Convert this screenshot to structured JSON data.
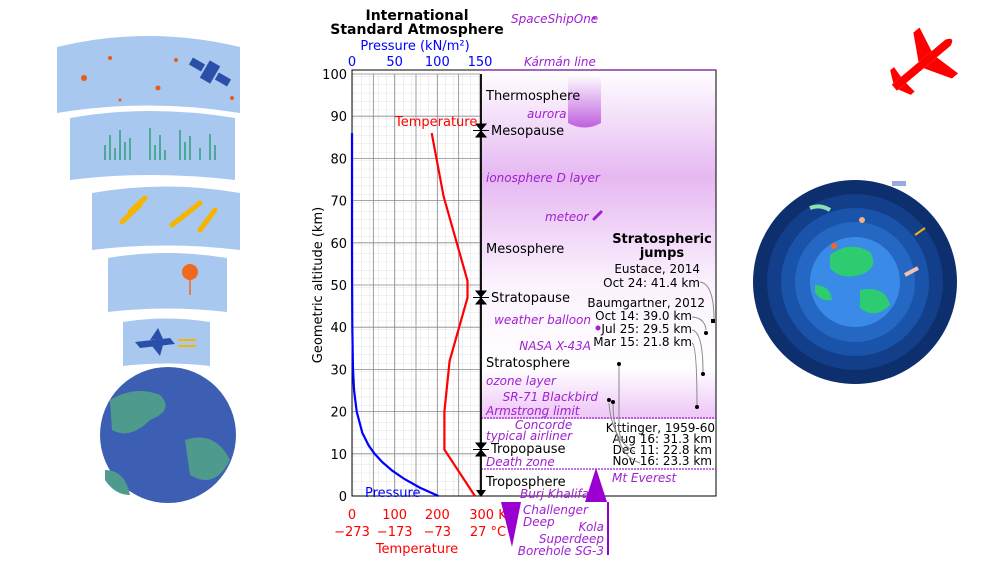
{
  "title_line1": "International",
  "title_line2": "Standard Atmosphere",
  "pressure_axis_label": "Pressure (kN/m²)",
  "pressure_ticks": [
    "0",
    "50",
    "100",
    "150"
  ],
  "altitude_axis_label": "Geometric altitude (km)",
  "altitude_ticks": [
    "0",
    "10",
    "20",
    "30",
    "40",
    "50",
    "60",
    "70",
    "80",
    "90",
    "100"
  ],
  "kelvin_ticks": [
    "0",
    "100",
    "200",
    "300 K"
  ],
  "celsius_ticks": [
    "−273",
    "−173",
    "−73",
    "27 °C"
  ],
  "temperature_axis_label": "Temperature",
  "temperature_curve_label": "Temperature",
  "pressure_curve_label": "Pressure",
  "layers": {
    "thermosphere": "Thermosphere",
    "mesopause": "Mesopause",
    "mesosphere": "Mesosphere",
    "stratopause": "Stratopause",
    "stratosphere": "Stratosphere",
    "tropopause": "Tropopause",
    "troposphere": "Troposphere"
  },
  "annotations": {
    "spaceshipone": "SpaceShipOne",
    "karman": "Kármán line",
    "aurora": "aurora",
    "ionosphere": "ionosphere D layer",
    "meteor": "meteor",
    "weather_balloon": "weather balloon",
    "x43a": "NASA X-43A",
    "ozone": "ozone layer",
    "sr71": "SR-71 Blackbird",
    "armstrong": "Armstrong limit",
    "concorde": "Concorde",
    "airliner": "typical airliner",
    "death_zone": "Death zone",
    "everest": "Mt Everest",
    "burj": "Burj Khalifa",
    "challenger1": "Challenger",
    "challenger2": "Deep",
    "kola1": "Kola",
    "kola2": "Superdeep",
    "kola3": "Borehole SG-3"
  },
  "jumps": {
    "title1": "Stratospheric",
    "title2": "jumps",
    "eustace": [
      "Eustace, 2014",
      "Oct 24: 41.4 km"
    ],
    "baumgartner": [
      "Baumgartner, 2012",
      "Oct 14: 39.0 km",
      "Jul 25: 29.5 km",
      "Mar 15: 21.8 km"
    ],
    "kittinger": [
      "Kittinger, 1959-60",
      "Aug 16: 31.3 km",
      "Dec 11: 22.8 km",
      "Nov 16: 23.3 km"
    ]
  },
  "chart_data": {
    "type": "line",
    "ylabel": "Geometric altitude (km)",
    "ylim": [
      0,
      100
    ],
    "series": [
      {
        "name": "Temperature",
        "unit": "K",
        "xlim": [
          0,
          300
        ],
        "color": "#ff0000",
        "points": [
          [
            288.15,
            0
          ],
          [
            216.65,
            11
          ],
          [
            216.65,
            20
          ],
          [
            228.65,
            32
          ],
          [
            270.65,
            47
          ],
          [
            270.65,
            51
          ],
          [
            214.65,
            71
          ],
          [
            186.87,
            86
          ]
        ]
      },
      {
        "name": "Pressure",
        "unit": "kN/m²",
        "xlim": [
          0,
          150
        ],
        "color": "#0000ff",
        "points": [
          [
            101.3,
            0
          ],
          [
            79.5,
            2
          ],
          [
            61.6,
            4
          ],
          [
            47.2,
            6
          ],
          [
            35.6,
            8
          ],
          [
            26.5,
            10
          ],
          [
            19.4,
            12
          ],
          [
            12.1,
            15
          ],
          [
            5.5,
            20
          ],
          [
            2.5,
            25
          ],
          [
            1.2,
            30
          ],
          [
            0.3,
            40
          ],
          [
            0.08,
            50
          ],
          [
            0,
            60
          ],
          [
            0,
            86
          ]
        ]
      }
    ],
    "boundaries_km": {
      "mesopause": 86,
      "stratopause": 47,
      "tropopause": 11,
      "armstrong": 19,
      "everest": 8.8,
      "karman": 100
    },
    "jump_points_km": [
      41.4,
      39.0,
      29.5,
      21.8,
      31.3,
      22.8,
      23.3
    ]
  }
}
